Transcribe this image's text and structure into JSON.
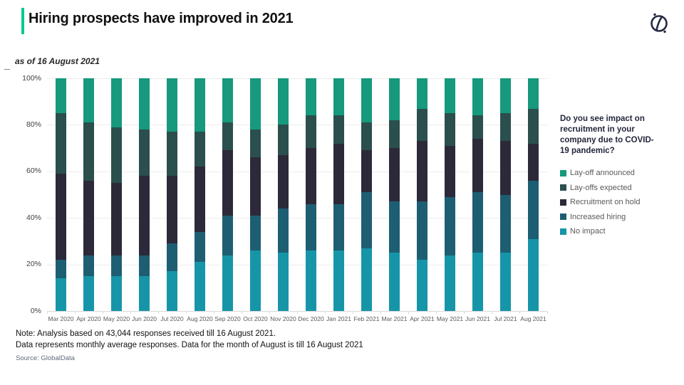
{
  "header": {
    "title": "Hiring prospects have improved in 2021",
    "accent_color": "#00c792",
    "logo_icon": "globaldata-logo",
    "logo_color": "#252a41"
  },
  "subtitle": "as of 16 August 2021",
  "legend": {
    "question": "Do you see impact on recruitment in your company due to COVID-19 pandemic?"
  },
  "footer": {
    "note_line1": "Note: Analysis based on 43,044 responses received till 16 August 2021.",
    "note_line2": "Data represents monthly average responses. Data for the month of August is till 16 August 2021",
    "source": "Source: GlobalData"
  },
  "chart_data": {
    "type": "bar",
    "stacked": true,
    "unit": "%",
    "ylim": [
      0,
      100
    ],
    "grid": true,
    "legend_position": "right",
    "y_ticks": [
      "0%",
      "20%",
      "40%",
      "60%",
      "80%",
      "100%"
    ],
    "categories": [
      "Mar 2020",
      "Apr 2020",
      "May 2020",
      "Jun 2020",
      "Jul 2020",
      "Aug 2020",
      "Sep 2020",
      "Oct 2020",
      "Nov 2020",
      "Dec 2020",
      "Jan 2021",
      "Feb 2021",
      "Mar 2021",
      "Apr 2021",
      "May 2021",
      "Jun 2021",
      "Jul 2021",
      "Aug 2021"
    ],
    "series": [
      {
        "name": "No impact",
        "color": "#1795a8",
        "values": [
          14,
          15,
          15,
          15,
          17,
          21,
          24,
          26,
          25,
          26,
          26,
          27,
          25,
          22,
          24,
          25,
          25,
          31
        ]
      },
      {
        "name": "Increased hiring",
        "color": "#1e5e72",
        "values": [
          8,
          9,
          9,
          9,
          12,
          13,
          17,
          15,
          19,
          20,
          20,
          24,
          22,
          25,
          25,
          26,
          25,
          25
        ]
      },
      {
        "name": "Recruitment on hold",
        "color": "#2c2939",
        "values": [
          37,
          32,
          31,
          34,
          29,
          28,
          28,
          25,
          23,
          24,
          26,
          18,
          23,
          26,
          22,
          23,
          23,
          16
        ]
      },
      {
        "name": "Lay-offs expected",
        "color": "#2a4f4d",
        "values": [
          26,
          25,
          24,
          20,
          19,
          15,
          12,
          12,
          13,
          14,
          12,
          12,
          12,
          14,
          14,
          10,
          12,
          15
        ]
      },
      {
        "name": "Lay-off announced",
        "color": "#16997c",
        "values": [
          15,
          19,
          21,
          22,
          23,
          23,
          19,
          22,
          20,
          16,
          16,
          19,
          18,
          13,
          15,
          16,
          15,
          13
        ]
      }
    ],
    "legend_order": [
      "Lay-off announced",
      "Lay-offs expected",
      "Recruitment on hold",
      "Increased hiring",
      "No impact"
    ]
  }
}
